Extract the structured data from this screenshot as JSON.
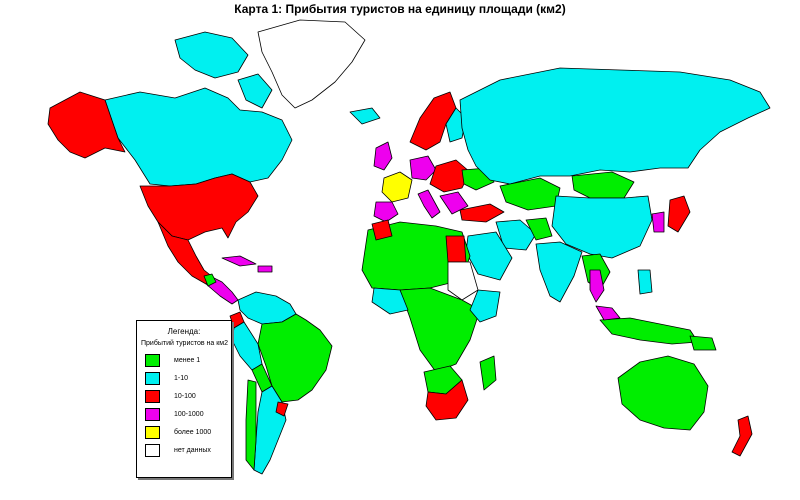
{
  "title": "Карта 1: Прибытия туристов на единицу площади (км2)",
  "colors": {
    "c1": "#00ee00",
    "c2": "#00f0f0",
    "c3": "#ff0000",
    "c4": "#ee00ee",
    "c5": "#ffff00",
    "c6": "#ffffff",
    "ocean": "#ffffff",
    "border": "#000000"
  },
  "legend": {
    "title": "Легенда:",
    "subtitle": "Прибытий туристов на км2",
    "items": [
      {
        "label": "менее 1",
        "color": "#00ee00"
      },
      {
        "label": "1-10",
        "color": "#00f0f0"
      },
      {
        "label": "10-100",
        "color": "#ff0000"
      },
      {
        "label": "100-1000",
        "color": "#ee00ee"
      },
      {
        "label": "более 1000",
        "color": "#ffff00"
      },
      {
        "label": "нет данных",
        "color": "#ffffff"
      }
    ]
  }
}
